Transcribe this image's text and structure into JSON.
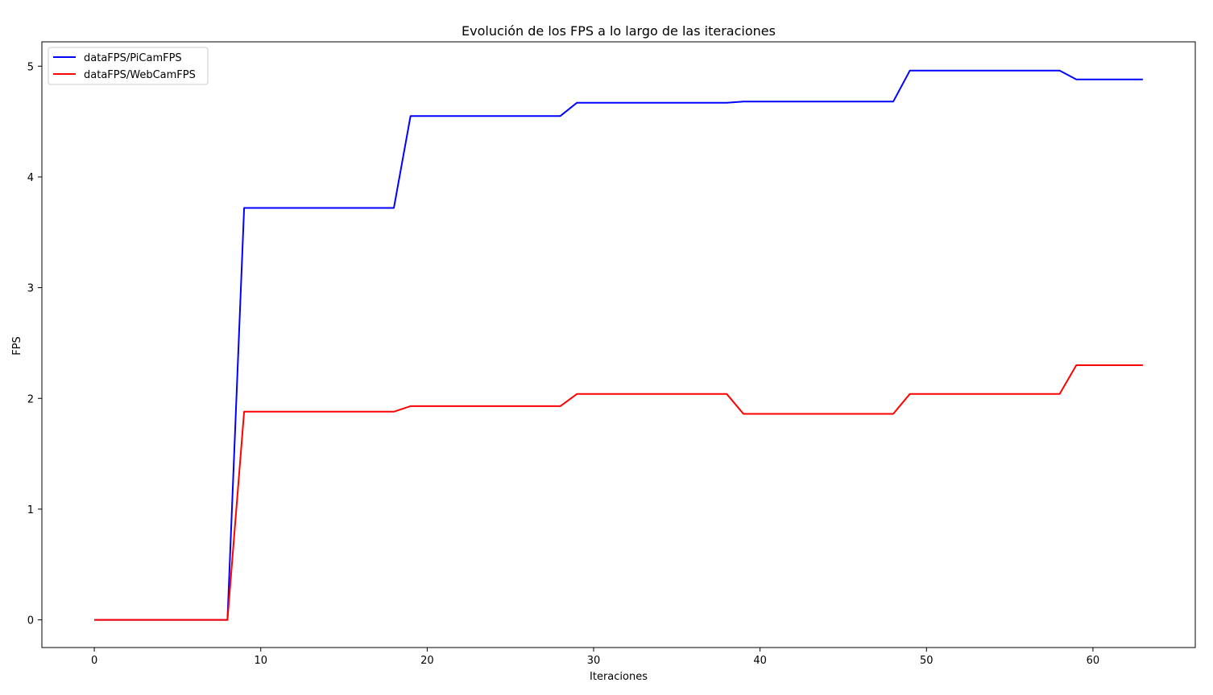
{
  "chart_data": {
    "type": "line",
    "title": "Evolución de los FPS a lo largo de las iteraciones",
    "xlabel": "Iteraciones",
    "ylabel": "FPS",
    "xlim": [
      -3.15,
      66.15
    ],
    "ylim": [
      -0.25,
      5.22
    ],
    "xticks": [
      0,
      10,
      20,
      30,
      40,
      50,
      60
    ],
    "yticks": [
      0,
      1,
      2,
      3,
      4,
      5
    ],
    "grid": false,
    "legend_position": "upper-left",
    "series": [
      {
        "name": "dataFPS/PiCamFPS",
        "color": "#0000ff",
        "x": [
          0,
          8,
          9,
          18,
          19,
          28,
          29,
          38,
          39,
          48,
          49,
          58,
          59,
          63
        ],
        "y": [
          0,
          0,
          3.72,
          3.72,
          4.55,
          4.55,
          4.67,
          4.67,
          4.68,
          4.68,
          4.96,
          4.96,
          4.88,
          4.88
        ]
      },
      {
        "name": "dataFPS/WebCamFPS",
        "color": "#ff0000",
        "x": [
          0,
          8,
          9,
          18,
          19,
          28,
          29,
          38,
          39,
          48,
          49,
          58,
          59,
          63
        ],
        "y": [
          0,
          0,
          1.88,
          1.88,
          1.93,
          1.93,
          2.04,
          2.04,
          1.86,
          1.86,
          2.04,
          2.04,
          2.3,
          2.3
        ]
      }
    ]
  }
}
